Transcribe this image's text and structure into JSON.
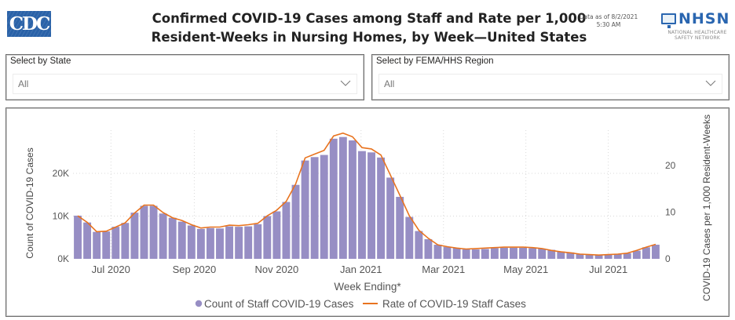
{
  "header": {
    "logo_text": "CDC",
    "title_line1": "Confirmed COVID-19 Cases among Staff and Rate per 1,000",
    "title_line2": "Resident-Weeks in Nursing Homes, by Week—United States",
    "data_as_of_line1": "Data as of 8/2/2021",
    "data_as_of_line2": "5:30 AM",
    "nhsn_logo_text": "NHSN",
    "nhsn_sub_line1": "NATIONAL HEALTHCARE",
    "nhsn_sub_line2": "SAFETY NETWORK"
  },
  "filters": {
    "state": {
      "label": "Select by State",
      "value": "All",
      "icon": "chevron-down-icon"
    },
    "region": {
      "label": "Select by FEMA/HHS Region",
      "value": "All",
      "icon": "chevron-down-icon"
    }
  },
  "colors": {
    "bar": "#978ec4",
    "line": "#e8731f",
    "grid": "#d9d9d9",
    "axis_text": "#555555"
  },
  "chart_data": {
    "type": "bar",
    "title": "Confirmed COVID-19 Cases among Staff and Rate per 1,000 Resident-Weeks in Nursing Homes, by Week—United States",
    "xlabel": "Week Ending*",
    "ylabel": "Count of COVID-19 Cases",
    "y2label": "COVID-19 Cases per 1,000 Resident-Weeks",
    "ylim": [
      0,
      30000
    ],
    "y2lim": [
      0,
      30
    ],
    "yticks": [
      {
        "value": 0,
        "label": "0K"
      },
      {
        "value": 10000,
        "label": "10K"
      },
      {
        "value": 20000,
        "label": "20K"
      }
    ],
    "y2ticks": [
      {
        "value": 0,
        "label": "0"
      },
      {
        "value": 10,
        "label": "10"
      },
      {
        "value": 20,
        "label": "20"
      }
    ],
    "xticks": [
      {
        "index": 3.5,
        "label": "Jul 2020"
      },
      {
        "index": 12.3,
        "label": "Sep 2020"
      },
      {
        "index": 21,
        "label": "Nov 2020"
      },
      {
        "index": 29.9,
        "label": "Jan 2021"
      },
      {
        "index": 38.6,
        "label": "Mar 2021"
      },
      {
        "index": 47.3,
        "label": "May 2021"
      },
      {
        "index": 56,
        "label": "Jul 2021"
      }
    ],
    "grid": true,
    "legend_position": "bottom-center",
    "series": [
      {
        "name": "Count of Staff COVID-19 Cases",
        "type": "bar",
        "axis": "left",
        "values": [
          10100,
          8500,
          6300,
          6400,
          7500,
          8400,
          10800,
          12400,
          12400,
          10600,
          9600,
          8700,
          7800,
          7000,
          7200,
          7100,
          7600,
          7500,
          7600,
          8100,
          10000,
          11100,
          13300,
          17300,
          23000,
          23800,
          24300,
          28100,
          28500,
          27700,
          25200,
          24900,
          23700,
          19000,
          14500,
          9800,
          6500,
          4600,
          3300,
          2800,
          2500,
          2200,
          2200,
          2300,
          2500,
          2600,
          2600,
          2600,
          2500,
          2400,
          2100,
          1700,
          1500,
          1200,
          1100,
          1000,
          1000,
          1100,
          1300,
          1900,
          2700,
          3300
        ]
      },
      {
        "name": "Rate of COVID-19 Staff Cases",
        "type": "line",
        "axis": "right",
        "values": [
          9.2,
          7.8,
          5.8,
          5.9,
          6.8,
          7.7,
          9.8,
          11.5,
          11.5,
          9.9,
          8.8,
          8.2,
          7.3,
          6.6,
          6.8,
          6.8,
          7.2,
          7.1,
          7.3,
          7.6,
          9.2,
          10.4,
          12.3,
          16.0,
          21.6,
          22.4,
          23.2,
          26.3,
          26.9,
          26.1,
          23.8,
          23.5,
          22.2,
          17.9,
          13.6,
          9.2,
          6.1,
          4.4,
          3.0,
          2.6,
          2.3,
          2.1,
          2.2,
          2.3,
          2.4,
          2.5,
          2.5,
          2.5,
          2.4,
          2.2,
          1.8,
          1.5,
          1.3,
          1.0,
          0.9,
          0.8,
          0.9,
          1.0,
          1.2,
          1.8,
          2.5,
          3.1
        ]
      }
    ]
  }
}
